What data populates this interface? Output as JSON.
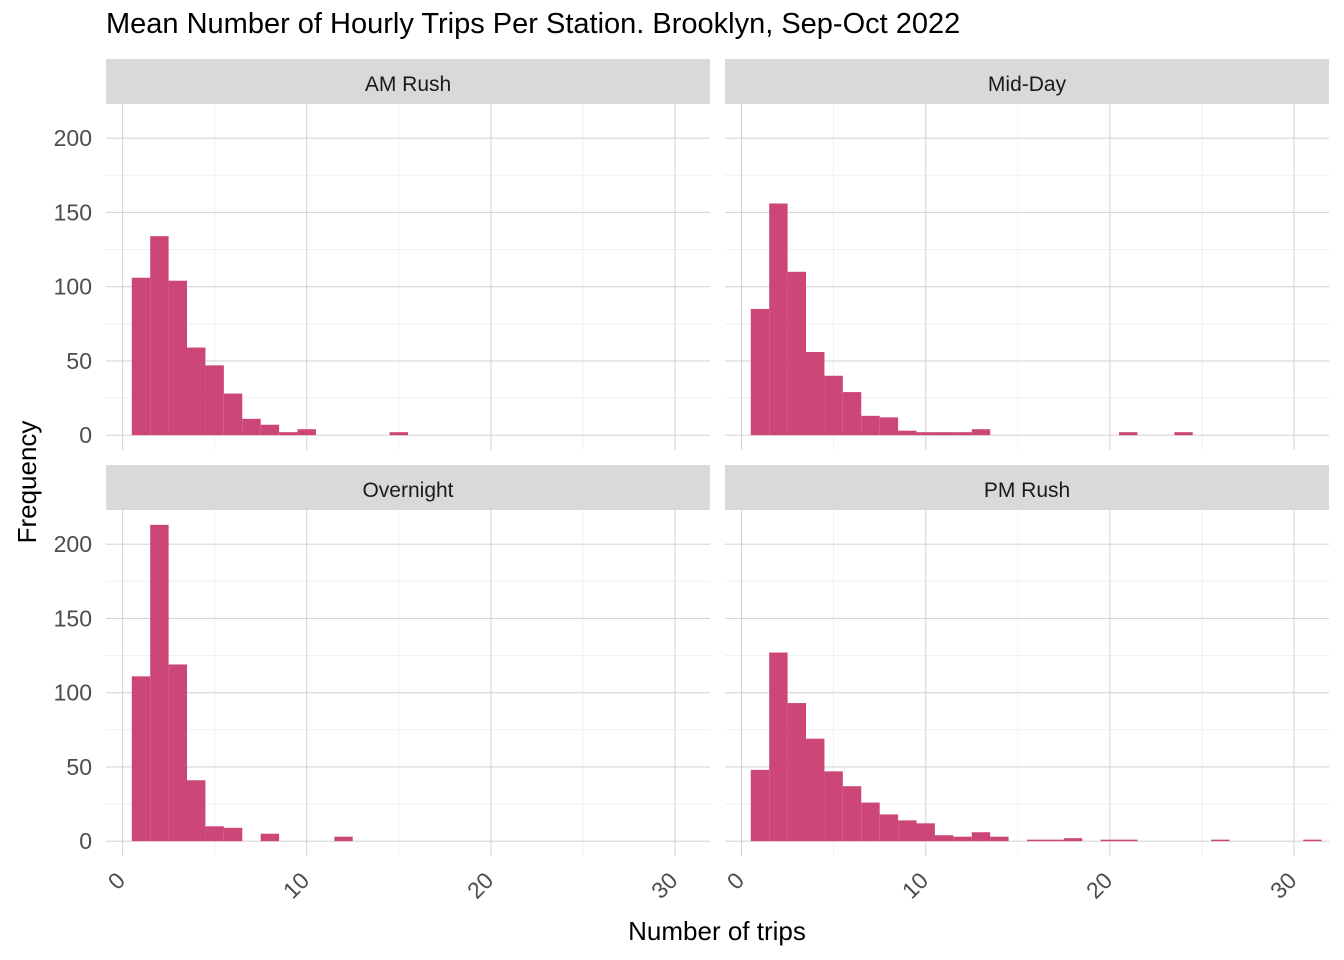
{
  "chart_data": {
    "type": "bar",
    "subtype": "histogram-facets",
    "title": "Mean Number of Hourly Trips Per Station. Brooklyn, Sep-Oct 2022",
    "xlabel": "Number of trips",
    "ylabel": "Frequency",
    "xlim": [
      -0.9,
      31.9
    ],
    "ylim": [
      -10,
      223
    ],
    "x_ticks": [
      0,
      10,
      20,
      30
    ],
    "y_ticks": [
      0,
      50,
      100,
      150,
      200
    ],
    "x_tick_labels": [
      "0",
      "10",
      "20",
      "30"
    ],
    "y_tick_labels": [
      "0",
      "50",
      "100",
      "150",
      "200"
    ],
    "bin_width": 1,
    "grid": true,
    "bar_color": "#cc4778",
    "strip_color": "#d9d9d9",
    "panels": [
      {
        "name": "AM Rush",
        "bins": [
          {
            "x0": 0.5,
            "count": 106
          },
          {
            "x0": 1.5,
            "count": 134
          },
          {
            "x0": 2.5,
            "count": 104
          },
          {
            "x0": 3.5,
            "count": 59
          },
          {
            "x0": 4.5,
            "count": 47
          },
          {
            "x0": 5.5,
            "count": 28
          },
          {
            "x0": 6.5,
            "count": 11
          },
          {
            "x0": 7.5,
            "count": 7
          },
          {
            "x0": 8.5,
            "count": 2
          },
          {
            "x0": 9.5,
            "count": 4
          },
          {
            "x0": 14.5,
            "count": 2
          }
        ]
      },
      {
        "name": "Mid-Day",
        "bins": [
          {
            "x0": 0.5,
            "count": 85
          },
          {
            "x0": 1.5,
            "count": 156
          },
          {
            "x0": 2.5,
            "count": 110
          },
          {
            "x0": 3.5,
            "count": 56
          },
          {
            "x0": 4.5,
            "count": 40
          },
          {
            "x0": 5.5,
            "count": 29
          },
          {
            "x0": 6.5,
            "count": 13
          },
          {
            "x0": 7.5,
            "count": 12
          },
          {
            "x0": 8.5,
            "count": 3
          },
          {
            "x0": 9.5,
            "count": 2
          },
          {
            "x0": 10.5,
            "count": 2
          },
          {
            "x0": 11.5,
            "count": 2
          },
          {
            "x0": 12.5,
            "count": 4
          },
          {
            "x0": 20.5,
            "count": 2
          },
          {
            "x0": 23.5,
            "count": 2
          }
        ]
      },
      {
        "name": "Overnight",
        "bins": [
          {
            "x0": 0.5,
            "count": 111
          },
          {
            "x0": 1.5,
            "count": 213
          },
          {
            "x0": 2.5,
            "count": 119
          },
          {
            "x0": 3.5,
            "count": 41
          },
          {
            "x0": 4.5,
            "count": 10
          },
          {
            "x0": 5.5,
            "count": 9
          },
          {
            "x0": 7.5,
            "count": 5
          },
          {
            "x0": 11.5,
            "count": 3
          }
        ]
      },
      {
        "name": "PM Rush",
        "bins": [
          {
            "x0": 0.5,
            "count": 48
          },
          {
            "x0": 1.5,
            "count": 127
          },
          {
            "x0": 2.5,
            "count": 93
          },
          {
            "x0": 3.5,
            "count": 69
          },
          {
            "x0": 4.5,
            "count": 47
          },
          {
            "x0": 5.5,
            "count": 37
          },
          {
            "x0": 6.5,
            "count": 26
          },
          {
            "x0": 7.5,
            "count": 18
          },
          {
            "x0": 8.5,
            "count": 14
          },
          {
            "x0": 9.5,
            "count": 12
          },
          {
            "x0": 10.5,
            "count": 4
          },
          {
            "x0": 11.5,
            "count": 3
          },
          {
            "x0": 12.5,
            "count": 6
          },
          {
            "x0": 13.5,
            "count": 3
          },
          {
            "x0": 15.5,
            "count": 1
          },
          {
            "x0": 16.5,
            "count": 1
          },
          {
            "x0": 17.5,
            "count": 2
          },
          {
            "x0": 19.5,
            "count": 1
          },
          {
            "x0": 20.5,
            "count": 1
          },
          {
            "x0": 25.5,
            "count": 1
          },
          {
            "x0": 30.5,
            "count": 1
          }
        ]
      }
    ]
  }
}
